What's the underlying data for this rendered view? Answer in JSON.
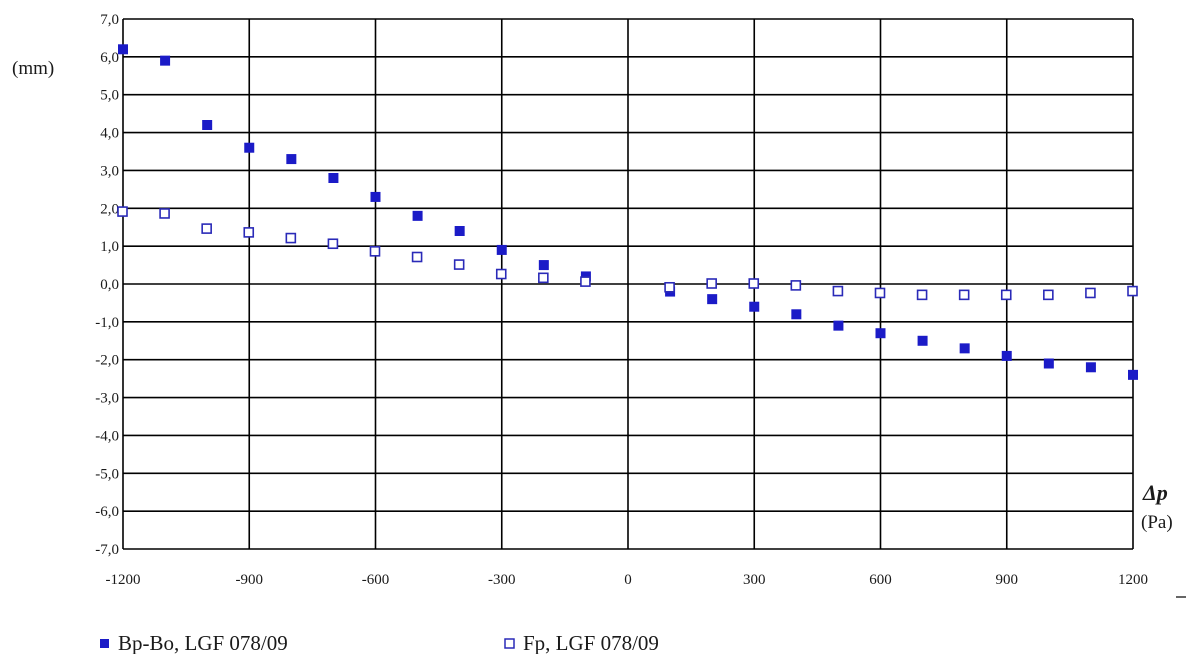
{
  "colors": {
    "filled_marker": "#1b1bc7",
    "open_marker_stroke": "#2a2ab8",
    "grid": "#000000"
  },
  "chart_data": {
    "type": "scatter",
    "title": "",
    "ylabel": "(mm)",
    "xlabel_symbol": "Δp",
    "xlabel_unit": "(Pa)",
    "xlim": [
      -1200,
      1200
    ],
    "ylim": [
      -7,
      7
    ],
    "x_ticks": [
      -1200,
      -900,
      -600,
      -300,
      0,
      300,
      600,
      900,
      1200
    ],
    "x_tick_labels": [
      "-1200",
      "-900",
      "-600",
      "-300",
      "0",
      "300",
      "600",
      "900",
      "1200"
    ],
    "y_ticks": [
      7,
      6,
      5,
      4,
      3,
      2,
      1,
      0,
      -1,
      -2,
      -3,
      -4,
      -5,
      -6,
      -7
    ],
    "y_tick_labels": [
      "7,0",
      "6,0",
      "5,0",
      "4,0",
      "3,0",
      "2,0",
      "1,0",
      "0,0",
      "-1,0",
      "-2,0",
      "-3,0",
      "-4,0",
      "-5,0",
      "-6,0",
      "-7,0"
    ],
    "grid": true,
    "legend_position": "bottom",
    "series": [
      {
        "name": "Bp-Bo, LGF 078/09",
        "marker": "filled-square",
        "points": [
          [
            -1200,
            6.2
          ],
          [
            -1100,
            5.9
          ],
          [
            -1000,
            4.2
          ],
          [
            -900,
            3.6
          ],
          [
            -800,
            3.3
          ],
          [
            -700,
            2.8
          ],
          [
            -600,
            2.3
          ],
          [
            -500,
            1.8
          ],
          [
            -400,
            1.4
          ],
          [
            -300,
            0.9
          ],
          [
            -200,
            0.5
          ],
          [
            -100,
            0.2
          ],
          [
            100,
            -0.2
          ],
          [
            200,
            -0.4
          ],
          [
            300,
            -0.6
          ],
          [
            400,
            -0.8
          ],
          [
            500,
            -1.1
          ],
          [
            600,
            -1.3
          ],
          [
            700,
            -1.5
          ],
          [
            800,
            -1.7
          ],
          [
            900,
            -1.9
          ],
          [
            1000,
            -2.1
          ],
          [
            1100,
            -2.2
          ],
          [
            1200,
            -2.4
          ]
        ]
      },
      {
        "name": "Fp, LGF 078/09",
        "marker": "open-square",
        "points": [
          [
            -1200,
            1.9
          ],
          [
            -1100,
            1.85
          ],
          [
            -1000,
            1.45
          ],
          [
            -900,
            1.35
          ],
          [
            -800,
            1.2
          ],
          [
            -700,
            1.05
          ],
          [
            -600,
            0.85
          ],
          [
            -500,
            0.7
          ],
          [
            -400,
            0.5
          ],
          [
            -300,
            0.25
          ],
          [
            -200,
            0.15
          ],
          [
            -100,
            0.05
          ],
          [
            100,
            -0.1
          ],
          [
            200,
            0.0
          ],
          [
            300,
            0.0
          ],
          [
            400,
            -0.05
          ],
          [
            500,
            -0.2
          ],
          [
            600,
            -0.25
          ],
          [
            700,
            -0.3
          ],
          [
            800,
            -0.3
          ],
          [
            900,
            -0.3
          ],
          [
            1000,
            -0.3
          ],
          [
            1100,
            -0.25
          ],
          [
            1200,
            -0.2
          ]
        ]
      }
    ]
  }
}
